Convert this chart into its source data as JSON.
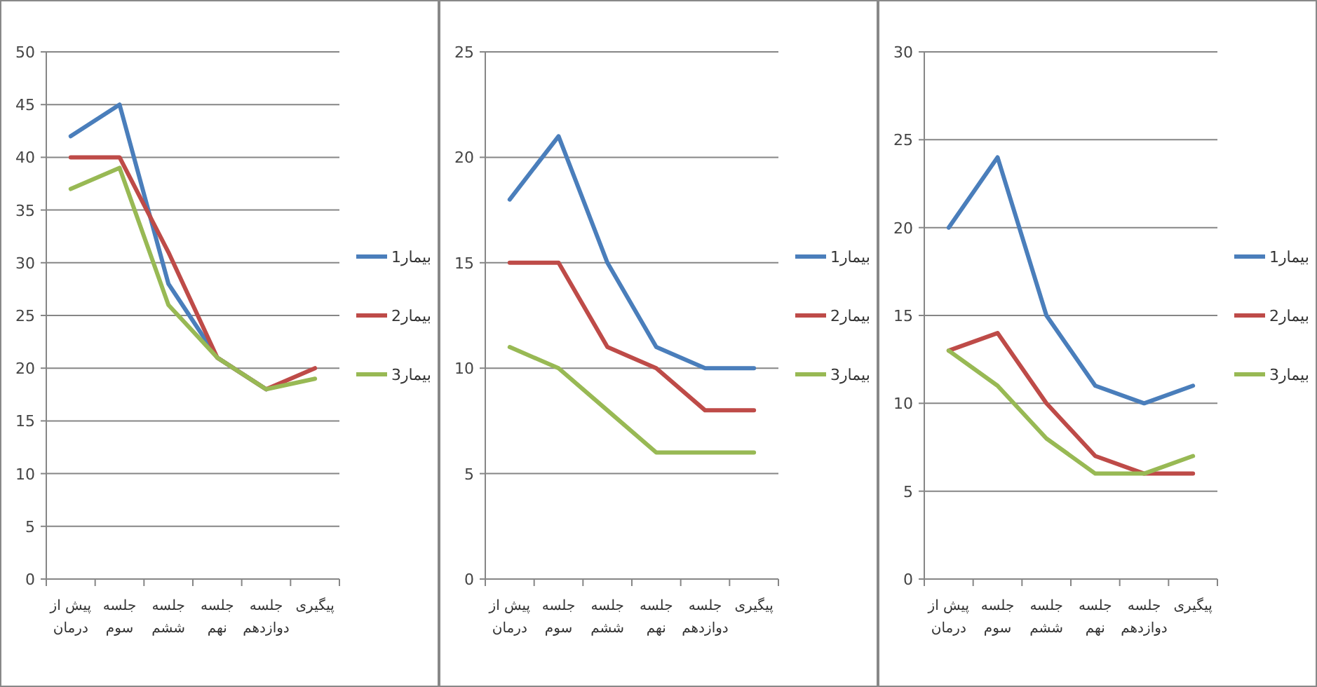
{
  "chart_data": [
    {
      "type": "line",
      "categories": [
        "پیش از درمان",
        "جلسه سوم",
        "جلسه ششم",
        "جلسه نهم",
        "جلسه دوازدهم",
        "پیگیری"
      ],
      "ylim": [
        0,
        50
      ],
      "yticks": [
        0,
        5,
        10,
        15,
        20,
        25,
        30,
        35,
        40,
        45,
        50
      ],
      "grid": "y",
      "legend": "right",
      "series": [
        {
          "name": "بیمار1",
          "color": "#4a7ebb",
          "values": [
            42,
            45,
            28,
            21,
            18,
            null
          ]
        },
        {
          "name": "بیمار2",
          "color": "#be4b48",
          "values": [
            40,
            40,
            31,
            21,
            18,
            20
          ]
        },
        {
          "name": "بیمار3",
          "color": "#98b954",
          "values": [
            37,
            39,
            26,
            21,
            18,
            19
          ]
        }
      ]
    },
    {
      "type": "line",
      "categories": [
        "پیش از درمان",
        "جلسه سوم",
        "جلسه ششم",
        "جلسه نهم",
        "جلسه دوازدهم",
        "پیگیری"
      ],
      "ylim": [
        0,
        25
      ],
      "yticks": [
        0,
        5,
        10,
        15,
        20,
        25
      ],
      "grid": "y",
      "legend": "right",
      "series": [
        {
          "name": "بیمار1",
          "color": "#4a7ebb",
          "values": [
            18,
            21,
            15,
            11,
            10,
            10
          ]
        },
        {
          "name": "بیمار2",
          "color": "#be4b48",
          "values": [
            15,
            15,
            11,
            10,
            8,
            8
          ]
        },
        {
          "name": "بیمار3",
          "color": "#98b954",
          "values": [
            11,
            10,
            8,
            6,
            6,
            6
          ]
        }
      ]
    },
    {
      "type": "line",
      "categories": [
        "پیش از درمان",
        "جلسه سوم",
        "جلسه ششم",
        "جلسه نهم",
        "جلسه دوازدهم",
        "پیگیری"
      ],
      "ylim": [
        0,
        30
      ],
      "yticks": [
        0,
        5,
        10,
        15,
        20,
        25,
        30
      ],
      "grid": "y",
      "legend": "right",
      "series": [
        {
          "name": "بیمار1",
          "color": "#4a7ebb",
          "values": [
            20,
            24,
            15,
            11,
            10,
            11
          ]
        },
        {
          "name": "بیمار2",
          "color": "#be4b48",
          "values": [
            13,
            14,
            10,
            7,
            6,
            6
          ]
        },
        {
          "name": "بیمار3",
          "color": "#98b954",
          "values": [
            13,
            11,
            8,
            6,
            6,
            7
          ]
        }
      ]
    }
  ]
}
